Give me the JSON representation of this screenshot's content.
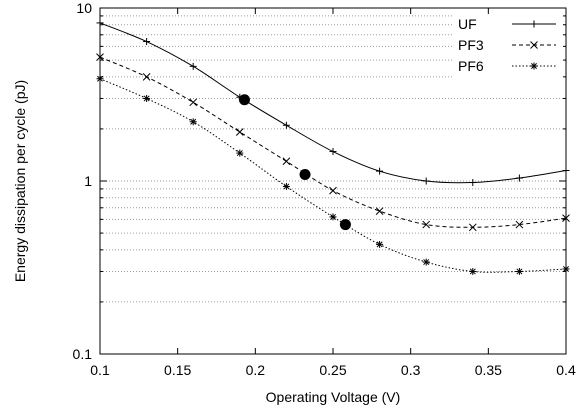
{
  "chart_data": {
    "type": "line",
    "xlabel": "Operating Voltage (V)",
    "ylabel": "Energy dissipation per cycle (pJ)",
    "xlim": [
      0.1,
      0.4
    ],
    "ylim": [
      0.1,
      10
    ],
    "y_scale": "log",
    "x_ticks": [
      0.1,
      0.15,
      0.2,
      0.25,
      0.3,
      0.35,
      0.4
    ],
    "x_tick_labels": [
      "0.1",
      "0.15",
      "0.2",
      "0.25",
      "0.3",
      "0.35",
      "0.4"
    ],
    "y_ticks": [
      0.1,
      1,
      10
    ],
    "y_tick_labels": [
      "0.1",
      "1",
      "10"
    ],
    "grid": "horizontal, dotted, at major and minor log ticks",
    "legend_position": "top-right",
    "series": [
      {
        "name": "UF",
        "line_style": "solid",
        "marker": "plus",
        "x": [
          0.1,
          0.13,
          0.16,
          0.19,
          0.22,
          0.25,
          0.28,
          0.31,
          0.34,
          0.37,
          0.4
        ],
        "y": [
          8.2,
          6.4,
          4.6,
          3.05,
          2.1,
          1.48,
          1.14,
          1.0,
          0.98,
          1.04,
          1.15
        ]
      },
      {
        "name": "PF3",
        "line_style": "dashed",
        "marker": "x",
        "x": [
          0.1,
          0.13,
          0.16,
          0.19,
          0.22,
          0.25,
          0.28,
          0.31,
          0.34,
          0.37,
          0.4
        ],
        "y": [
          5.2,
          4.0,
          2.85,
          1.92,
          1.3,
          0.88,
          0.67,
          0.56,
          0.54,
          0.56,
          0.61
        ]
      },
      {
        "name": "PF6",
        "line_style": "dotted",
        "marker": "asterisk",
        "x": [
          0.1,
          0.13,
          0.16,
          0.19,
          0.22,
          0.25,
          0.28,
          0.31,
          0.34,
          0.37,
          0.4
        ],
        "y": [
          3.9,
          3.0,
          2.2,
          1.45,
          0.93,
          0.62,
          0.43,
          0.34,
          0.3,
          0.3,
          0.31
        ]
      }
    ],
    "highlight_points": [
      {
        "x": 0.193,
        "y": 2.95
      },
      {
        "x": 0.232,
        "y": 1.09
      },
      {
        "x": 0.258,
        "y": 0.56
      }
    ],
    "colors": {
      "line": "#000000",
      "grid": "#9a9a9a",
      "background": "#ffffff"
    }
  }
}
